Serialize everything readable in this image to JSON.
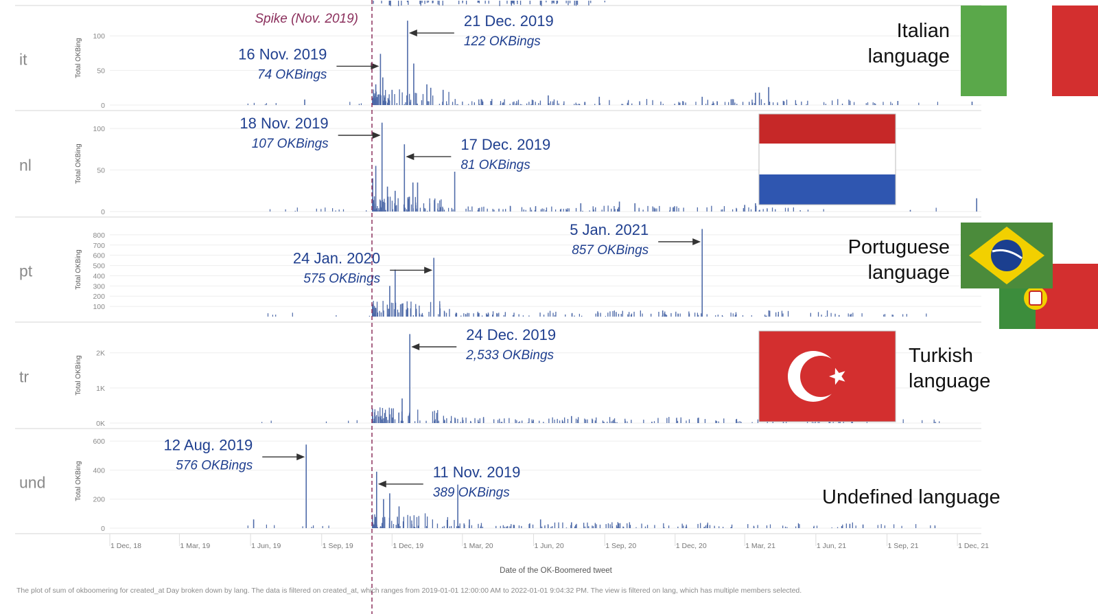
{
  "chart_data": {
    "type": "bar",
    "subtype": "small-multiples time series",
    "x_axis": {
      "title": "Date of the OK-Boomered tweet",
      "range": [
        "2018-12-01",
        "2022-01-01"
      ],
      "ticks": [
        {
          "date": "2018-12-01",
          "label": "1 Dec, 18"
        },
        {
          "date": "2019-03-01",
          "label": "1 Mar, 19"
        },
        {
          "date": "2019-06-01",
          "label": "1 Jun, 19"
        },
        {
          "date": "2019-09-01",
          "label": "1 Sep, 19"
        },
        {
          "date": "2019-12-01",
          "label": "1 Dec, 19"
        },
        {
          "date": "2020-03-01",
          "label": "1 Mar, 20"
        },
        {
          "date": "2020-06-01",
          "label": "1 Jun, 20"
        },
        {
          "date": "2020-09-01",
          "label": "1 Sep, 20"
        },
        {
          "date": "2020-12-01",
          "label": "1 Dec, 20"
        },
        {
          "date": "2021-03-01",
          "label": "1 Mar, 21"
        },
        {
          "date": "2021-06-01",
          "label": "1 Jun, 21"
        },
        {
          "date": "2021-09-01",
          "label": "1 Sep, 21"
        },
        {
          "date": "2021-12-01",
          "label": "1 Dec, 21"
        }
      ]
    },
    "ylabel": "Total OKBing",
    "spike_line": {
      "date": "2019-11-05",
      "label": "Spike (Nov. 2019)"
    },
    "panels": [
      {
        "lang": "it",
        "language_label": [
          "Italian",
          "language"
        ],
        "ylim": [
          0,
          130
        ],
        "yticks": [
          {
            "v": 0,
            "label": "0"
          },
          {
            "v": 50,
            "label": "50"
          },
          {
            "v": 100,
            "label": "100"
          }
        ],
        "bars": [
          {
            "date": "2019-08-10",
            "value": 8
          },
          {
            "date": "2019-11-10",
            "value": 30
          },
          {
            "date": "2019-11-16",
            "value": 74
          },
          {
            "date": "2019-11-19",
            "value": 40
          },
          {
            "date": "2019-12-01",
            "value": 22
          },
          {
            "date": "2019-12-21",
            "value": 122
          },
          {
            "date": "2019-12-29",
            "value": 60
          },
          {
            "date": "2020-01-15",
            "value": 30
          },
          {
            "date": "2020-01-20",
            "value": 25
          },
          {
            "date": "2020-02-05",
            "value": 22
          },
          {
            "date": "2020-06-20",
            "value": 14
          },
          {
            "date": "2020-08-25",
            "value": 12
          },
          {
            "date": "2021-01-05",
            "value": 12
          },
          {
            "date": "2021-03-15",
            "value": 18
          },
          {
            "date": "2021-03-20",
            "value": 18
          },
          {
            "date": "2021-04-01",
            "value": 26
          },
          {
            "date": "2021-09-15",
            "value": 6
          },
          {
            "date": "2021-12-20",
            "value": 5
          }
        ],
        "annotations": [
          {
            "date": "2019-11-16",
            "value": 74,
            "label": "16 Nov. 2019",
            "sublabel": "74 OKBings",
            "side": "left"
          },
          {
            "date": "2019-12-21",
            "value": 122,
            "label": "21 Dec. 2019",
            "sublabel": "122 OKBings",
            "side": "right"
          }
        ]
      },
      {
        "lang": "nl",
        "language_label": [],
        "ylim": [
          0,
          110
        ],
        "yticks": [
          {
            "v": 0,
            "label": "0"
          },
          {
            "v": 50,
            "label": "50"
          },
          {
            "v": 100,
            "label": "100"
          }
        ],
        "bars": [
          {
            "date": "2019-11-06",
            "value": 40
          },
          {
            "date": "2019-11-10",
            "value": 55
          },
          {
            "date": "2019-11-18",
            "value": 107
          },
          {
            "date": "2019-11-25",
            "value": 30
          },
          {
            "date": "2019-12-05",
            "value": 25
          },
          {
            "date": "2019-12-17",
            "value": 81
          },
          {
            "date": "2019-12-28",
            "value": 35
          },
          {
            "date": "2020-01-03",
            "value": 35
          },
          {
            "date": "2020-02-20",
            "value": 48
          },
          {
            "date": "2020-08-01",
            "value": 10
          },
          {
            "date": "2020-09-20",
            "value": 12
          },
          {
            "date": "2020-10-10",
            "value": 10
          },
          {
            "date": "2021-03-01",
            "value": 8
          },
          {
            "date": "2021-03-15",
            "value": 10
          },
          {
            "date": "2021-12-26",
            "value": 16
          }
        ],
        "annotations": [
          {
            "date": "2019-11-18",
            "value": 107,
            "label": "18 Nov. 2019",
            "sublabel": "107 OKBings",
            "side": "left"
          },
          {
            "date": "2019-12-17",
            "value": 81,
            "label": "17 Dec. 2019",
            "sublabel": "81 OKBings",
            "side": "right"
          }
        ]
      },
      {
        "lang": "pt",
        "language_label": [
          "Portuguese",
          "language"
        ],
        "ylim": [
          0,
          880
        ],
        "yticks": [
          {
            "v": 100,
            "label": "100"
          },
          {
            "v": 200,
            "label": "200"
          },
          {
            "v": 300,
            "label": "300"
          },
          {
            "v": 400,
            "label": "400"
          },
          {
            "v": 500,
            "label": "500"
          },
          {
            "v": 600,
            "label": "600"
          },
          {
            "v": 700,
            "label": "700"
          },
          {
            "v": 800,
            "label": "800"
          }
        ],
        "bars": [
          {
            "date": "2019-11-10",
            "value": 80
          },
          {
            "date": "2019-11-20",
            "value": 60
          },
          {
            "date": "2019-11-28",
            "value": 300
          },
          {
            "date": "2019-12-05",
            "value": 460
          },
          {
            "date": "2019-12-12",
            "value": 120
          },
          {
            "date": "2019-12-20",
            "value": 60
          },
          {
            "date": "2020-01-24",
            "value": 575
          },
          {
            "date": "2020-02-01",
            "value": 80
          },
          {
            "date": "2020-04-15",
            "value": 30
          },
          {
            "date": "2020-11-15",
            "value": 60
          },
          {
            "date": "2021-01-05",
            "value": 857
          },
          {
            "date": "2021-07-01",
            "value": 15
          }
        ],
        "annotations": [
          {
            "date": "2020-01-24",
            "value": 575,
            "label": "24 Jan. 2020",
            "sublabel": "575 OKBings",
            "side": "left"
          },
          {
            "date": "2021-01-05",
            "value": 857,
            "label": "5 Jan. 2021",
            "sublabel": "857 OKBings",
            "side": "left"
          }
        ]
      },
      {
        "lang": "tr",
        "language_label": [
          "Turkish",
          "language"
        ],
        "ylim": [
          0,
          2600
        ],
        "yticks": [
          {
            "v": 0,
            "label": "0K"
          },
          {
            "v": 1000,
            "label": "1K"
          },
          {
            "v": 2000,
            "label": "2K"
          }
        ],
        "bars": [
          {
            "date": "2019-12-14",
            "value": 700
          },
          {
            "date": "2019-12-24",
            "value": 2533
          },
          {
            "date": "2020-02-15",
            "value": 60
          },
          {
            "date": "2020-07-20",
            "value": 200
          },
          {
            "date": "2020-11-01",
            "value": 40
          },
          {
            "date": "2021-04-20",
            "value": 50
          },
          {
            "date": "2021-07-01",
            "value": 150
          },
          {
            "date": "2021-11-01",
            "value": 40
          }
        ],
        "annotations": [
          {
            "date": "2019-12-24",
            "value": 2533,
            "label": "24 Dec. 2019",
            "sublabel": "2,533 OKBings",
            "side": "right"
          }
        ]
      },
      {
        "lang": "und",
        "language_label": [
          "Undefined language"
        ],
        "ylim": [
          0,
          620
        ],
        "yticks": [
          {
            "v": 0,
            "label": "0"
          },
          {
            "v": 200,
            "label": "200"
          },
          {
            "v": 400,
            "label": "400"
          },
          {
            "v": 600,
            "label": "600"
          }
        ],
        "bars": [
          {
            "date": "2019-06-05",
            "value": 60
          },
          {
            "date": "2019-08-12",
            "value": 576
          },
          {
            "date": "2019-11-11",
            "value": 389
          },
          {
            "date": "2019-11-20",
            "value": 200
          },
          {
            "date": "2019-11-28",
            "value": 240
          },
          {
            "date": "2019-12-10",
            "value": 150
          },
          {
            "date": "2020-02-24",
            "value": 300
          },
          {
            "date": "2020-03-10",
            "value": 60
          },
          {
            "date": "2020-06-10",
            "value": 60
          },
          {
            "date": "2020-07-20",
            "value": 40
          },
          {
            "date": "2021-07-15",
            "value": 30
          },
          {
            "date": "2021-08-01",
            "value": 25
          }
        ],
        "annotations": [
          {
            "date": "2019-08-12",
            "value": 576,
            "label": "12 Aug. 2019",
            "sublabel": "576 OKBings",
            "side": "left"
          },
          {
            "date": "2019-11-11",
            "value": 389,
            "label": "11 Nov. 2019",
            "sublabel": "389 OKBings",
            "side": "right"
          }
        ]
      }
    ],
    "colors": {
      "bar": "#4e6aa8",
      "annotation_text": "#1f3f8f",
      "spike_line": "#8b2f5c",
      "panel_label": "#8a8a8a",
      "axis_text": "#666666",
      "grid": "#eeeeee"
    },
    "flags": [
      {
        "name": "italy-flag",
        "colors": [
          "#5aa84a",
          "#ffffff",
          "#d32f2f"
        ]
      },
      {
        "name": "netherlands-flag",
        "colors": [
          "#c62828",
          "#ffffff",
          "#2f56b0"
        ]
      },
      {
        "name": "brazil-flag",
        "colors": [
          "#4b8b3b",
          "#f2d000",
          "#1b3f8f"
        ]
      },
      {
        "name": "portugal-flag",
        "colors": [
          "#3c8d3c",
          "#d32f2f"
        ]
      },
      {
        "name": "turkey-flag",
        "colors": [
          "#d32f2f",
          "#ffffff"
        ]
      }
    ]
  },
  "caption": "The plot of sum of okboomering for created_at Day broken down by lang. The data is filtered on created_at, which ranges from 2019-01-01 12:00:00 AM to 2022-01-01 9:04:32 PM. The view is filtered on lang, which has multiple members selected."
}
